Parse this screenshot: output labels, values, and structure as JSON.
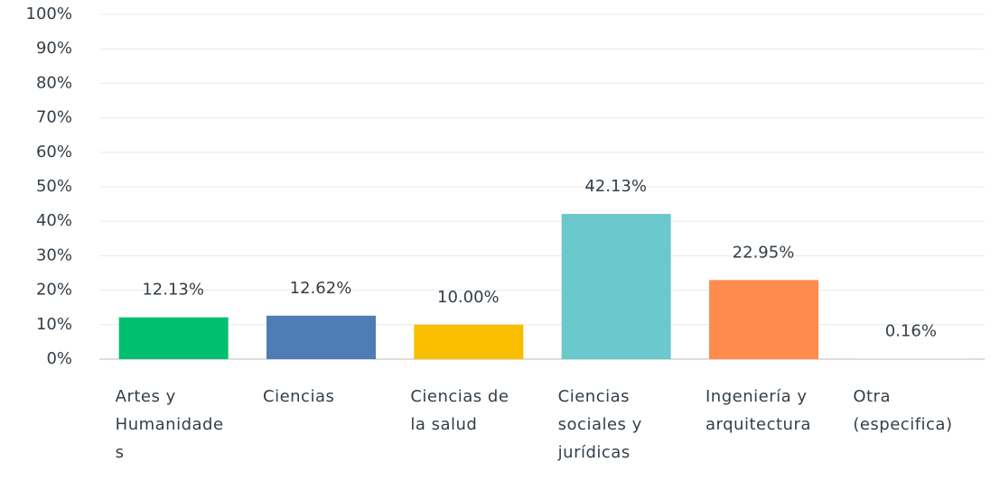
{
  "chart_data": {
    "type": "bar",
    "categories": [
      "Artes y Humanidades",
      "Ciencias",
      "Ciencias de la salud",
      "Ciencias sociales y jurídicas",
      "Ingeniería y arquitectura",
      "Otra (especifica)"
    ],
    "values": [
      12.13,
      12.62,
      10.0,
      42.13,
      22.95,
      0.16
    ],
    "value_labels": [
      "12.13%",
      "12.62%",
      "10.00%",
      "42.13%",
      "22.95%",
      "0.16%"
    ],
    "colors": [
      "#00bf6f",
      "#507cb6",
      "#f9be00",
      "#6bc8cd",
      "#ff8b4f",
      "#d0d0d0"
    ],
    "ylim": [
      0,
      100
    ],
    "yticks": [
      {
        "value": 0,
        "label": "0%"
      },
      {
        "value": 10,
        "label": "10%"
      },
      {
        "value": 20,
        "label": "20%"
      },
      {
        "value": 30,
        "label": "30%"
      },
      {
        "value": 40,
        "label": "40%"
      },
      {
        "value": 50,
        "label": "50%"
      },
      {
        "value": 60,
        "label": "60%"
      },
      {
        "value": 70,
        "label": "70%"
      },
      {
        "value": 80,
        "label": "80%"
      },
      {
        "value": 90,
        "label": "90%"
      },
      {
        "value": 100,
        "label": "100%"
      }
    ],
    "grid": true
  }
}
